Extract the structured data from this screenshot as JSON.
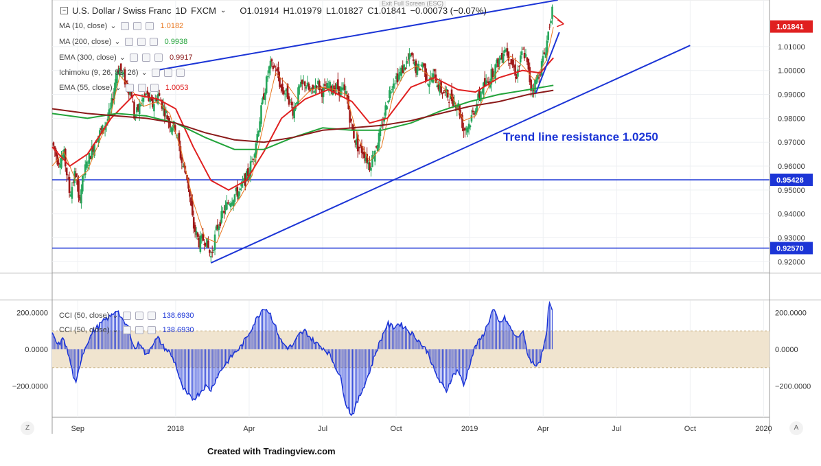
{
  "window": {
    "exit_fullscreen": "Exit Full Screen (ESC)"
  },
  "header": {
    "symbol": "U.S. Dollar / Swiss Franc",
    "interval": "1D",
    "source": "FXCM",
    "open": "O1.01914",
    "high": "H1.01979",
    "low": "L1.01827",
    "close": "C1.01841",
    "change": "−0.00073 (−0.07%)"
  },
  "indicators": [
    {
      "label": "MA (10, close)",
      "value": "1.0182",
      "color": "#e8761e"
    },
    {
      "label": "MA (200, close)",
      "value": "0.9938",
      "color": "#22a33a"
    },
    {
      "label": "EMA (300, close)",
      "value": "0.9917",
      "color": "#8b1a1a"
    },
    {
      "label": "Ichimoku (9, 26, 52, 26)",
      "value": "",
      "color": "#888888"
    },
    {
      "label": "EMA (55, close)",
      "value": "1.0053",
      "color": "#e02020"
    }
  ],
  "cci": [
    {
      "label": "CCI (50, close)",
      "value": "138.6930",
      "color": "#1c35d6"
    },
    {
      "label": "CCI (50, close)",
      "value": "138.6930",
      "color": "#1c35d6"
    }
  ],
  "annotation": "Trend line resistance 1.0250",
  "credit": "Created with Tradingview.com",
  "corner_left": "Z",
  "corner_right": "A",
  "colors": {
    "candle_up": "#26a65b",
    "candle_down": "#a01818",
    "trendline": "#1c35d6",
    "cci_band": "#f0e4cf"
  },
  "chart_data": {
    "type": "candlestick",
    "price_axis": {
      "ticks": [
        "1.01000",
        "1.00000",
        "0.99000",
        "0.98000",
        "0.97000",
        "0.96000",
        "0.95000",
        "0.94000",
        "0.93000",
        "0.92000"
      ],
      "tick_values": [
        1.01,
        1.0,
        0.99,
        0.98,
        0.97,
        0.96,
        0.95,
        0.94,
        0.93,
        0.92
      ],
      "ylim": [
        0.9155,
        1.0295
      ],
      "last_price_label": "1.01841",
      "horizontal_levels": [
        {
          "label": "0.95428",
          "value": 0.95428
        },
        {
          "label": "0.92570",
          "value": 0.9257
        }
      ]
    },
    "time_axis": {
      "labels": [
        "Sep",
        "2018",
        "Apr",
        "Jul",
        "Oct",
        "2019",
        "Apr",
        "Jul",
        "Oct",
        "2020"
      ],
      "positions": [
        2017.667,
        2018.0,
        2018.25,
        2018.5,
        2018.75,
        2019.0,
        2019.25,
        2019.5,
        2019.75,
        2020.0
      ],
      "xlim": [
        2017.58,
        2020.02
      ],
      "last_date": 2019.285
    },
    "ohlc_path": [
      [
        2017.58,
        0.97
      ],
      [
        2017.6,
        0.962
      ],
      [
        2017.62,
        0.965
      ],
      [
        2017.64,
        0.948
      ],
      [
        2017.66,
        0.958
      ],
      [
        2017.67,
        0.945
      ],
      [
        2017.69,
        0.958
      ],
      [
        2017.71,
        0.965
      ],
      [
        2017.73,
        0.972
      ],
      [
        2017.75,
        0.975
      ],
      [
        2017.77,
        0.98
      ],
      [
        2017.78,
        0.984
      ],
      [
        2017.79,
        0.992
      ],
      [
        2017.8,
        1.0
      ],
      [
        2017.81,
        1.001
      ],
      [
        2017.83,
        0.995
      ],
      [
        2017.85,
        0.99
      ],
      [
        2017.86,
        0.98
      ],
      [
        2017.88,
        0.986
      ],
      [
        2017.9,
        0.99
      ],
      [
        2017.92,
        0.985
      ],
      [
        2017.94,
        0.99
      ],
      [
        2017.96,
        0.984
      ],
      [
        2017.98,
        0.978
      ],
      [
        2018.0,
        0.976
      ],
      [
        2018.02,
        0.962
      ],
      [
        2018.04,
        0.955
      ],
      [
        2018.06,
        0.935
      ],
      [
        2018.08,
        0.928
      ],
      [
        2018.1,
        0.93
      ],
      [
        2018.12,
        0.922
      ],
      [
        2018.14,
        0.934
      ],
      [
        2018.16,
        0.94
      ],
      [
        2018.18,
        0.945
      ],
      [
        2018.2,
        0.948
      ],
      [
        2018.22,
        0.95
      ],
      [
        2018.24,
        0.955
      ],
      [
        2018.26,
        0.962
      ],
      [
        2018.28,
        0.975
      ],
      [
        2018.3,
        0.99
      ],
      [
        2018.32,
        1.002
      ],
      [
        2018.34,
        1.001
      ],
      [
        2018.36,
        0.992
      ],
      [
        2018.38,
        0.99
      ],
      [
        2018.4,
        0.983
      ],
      [
        2018.42,
        0.992
      ],
      [
        2018.44,
        0.995
      ],
      [
        2018.46,
        0.99
      ],
      [
        2018.48,
        0.995
      ],
      [
        2018.5,
        0.991
      ],
      [
        2018.52,
        0.993
      ],
      [
        2018.54,
        0.993
      ],
      [
        2018.56,
        0.992
      ],
      [
        2018.58,
        0.99
      ],
      [
        2018.6,
        0.975
      ],
      [
        2018.62,
        0.968
      ],
      [
        2018.64,
        0.966
      ],
      [
        2018.66,
        0.96
      ],
      [
        2018.68,
        0.968
      ],
      [
        2018.7,
        0.975
      ],
      [
        2018.72,
        0.988
      ],
      [
        2018.74,
        0.996
      ],
      [
        2018.76,
        0.998
      ],
      [
        2018.78,
        1.002
      ],
      [
        2018.8,
        1.006
      ],
      [
        2018.82,
        1.0
      ],
      [
        2018.84,
        1.003
      ],
      [
        2018.86,
        0.995
      ],
      [
        2018.88,
        0.998
      ],
      [
        2018.9,
        0.992
      ],
      [
        2018.92,
        0.99
      ],
      [
        2018.94,
        0.988
      ],
      [
        2018.96,
        0.986
      ],
      [
        2018.98,
        0.975
      ],
      [
        2019.0,
        0.978
      ],
      [
        2019.02,
        0.985
      ],
      [
        2019.04,
        0.992
      ],
      [
        2019.06,
        0.995
      ],
      [
        2019.08,
        1.0
      ],
      [
        2019.1,
        1.004
      ],
      [
        2019.12,
        1.01
      ],
      [
        2019.14,
        1.004
      ],
      [
        2019.16,
        0.998
      ],
      [
        2019.18,
        1.008
      ],
      [
        2019.19,
        1.006
      ],
      [
        2019.21,
        0.992
      ],
      [
        2019.22,
        0.994
      ],
      [
        2019.24,
        1.0
      ],
      [
        2019.26,
        1.01
      ],
      [
        2019.28,
        1.026
      ],
      [
        2019.285,
        1.0184
      ]
    ],
    "series": [
      {
        "name": "MA (10, close)",
        "color": "#e8761e",
        "points": [
          [
            2017.58,
            0.96
          ],
          [
            2017.62,
            0.966
          ],
          [
            2017.66,
            0.954
          ],
          [
            2017.7,
            0.958
          ],
          [
            2017.74,
            0.97
          ],
          [
            2017.78,
            0.982
          ],
          [
            2017.81,
            0.998
          ],
          [
            2017.85,
            0.992
          ],
          [
            2017.89,
            0.985
          ],
          [
            2017.94,
            0.987
          ],
          [
            2017.98,
            0.982
          ],
          [
            2018.02,
            0.966
          ],
          [
            2018.06,
            0.945
          ],
          [
            2018.1,
            0.93
          ],
          [
            2018.14,
            0.928
          ],
          [
            2018.18,
            0.94
          ],
          [
            2018.22,
            0.947
          ],
          [
            2018.26,
            0.956
          ],
          [
            2018.3,
            0.978
          ],
          [
            2018.34,
            0.999
          ],
          [
            2018.38,
            0.994
          ],
          [
            2018.42,
            0.987
          ],
          [
            2018.46,
            0.992
          ],
          [
            2018.5,
            0.993
          ],
          [
            2018.54,
            0.992
          ],
          [
            2018.58,
            0.99
          ],
          [
            2018.62,
            0.972
          ],
          [
            2018.66,
            0.962
          ],
          [
            2018.7,
            0.968
          ],
          [
            2018.74,
            0.99
          ],
          [
            2018.78,
            0.999
          ],
          [
            2018.82,
            1.002
          ],
          [
            2018.86,
            0.998
          ],
          [
            2018.9,
            0.994
          ],
          [
            2018.94,
            0.989
          ],
          [
            2018.98,
            0.979
          ],
          [
            2019.02,
            0.981
          ],
          [
            2019.06,
            0.992
          ],
          [
            2019.1,
            1.001
          ],
          [
            2019.14,
            1.006
          ],
          [
            2019.18,
            1.002
          ],
          [
            2019.22,
            0.996
          ],
          [
            2019.26,
            1.004
          ],
          [
            2019.285,
            1.0182
          ]
        ]
      },
      {
        "name": "EMA (55, close)",
        "color": "#e02020",
        "points": [
          [
            2017.58,
            0.968
          ],
          [
            2017.64,
            0.96
          ],
          [
            2017.7,
            0.965
          ],
          [
            2017.78,
            0.98
          ],
          [
            2017.86,
            0.99
          ],
          [
            2017.94,
            0.988
          ],
          [
            2018.0,
            0.984
          ],
          [
            2018.06,
            0.968
          ],
          [
            2018.12,
            0.954
          ],
          [
            2018.18,
            0.95
          ],
          [
            2018.24,
            0.954
          ],
          [
            2018.3,
            0.966
          ],
          [
            2018.36,
            0.98
          ],
          [
            2018.44,
            0.988
          ],
          [
            2018.52,
            0.992
          ],
          [
            2018.6,
            0.987
          ],
          [
            2018.66,
            0.978
          ],
          [
            2018.72,
            0.98
          ],
          [
            2018.8,
            0.993
          ],
          [
            2018.88,
            0.997
          ],
          [
            2018.96,
            0.992
          ],
          [
            2019.02,
            0.991
          ],
          [
            2019.1,
            0.997
          ],
          [
            2019.18,
            1.0
          ],
          [
            2019.24,
            0.999
          ],
          [
            2019.285,
            1.0053
          ]
        ]
      },
      {
        "name": "MA (200, close)",
        "color": "#22a33a",
        "points": [
          [
            2017.58,
            0.982
          ],
          [
            2017.7,
            0.98
          ],
          [
            2017.8,
            0.982
          ],
          [
            2017.9,
            0.981
          ],
          [
            2018.0,
            0.978
          ],
          [
            2018.1,
            0.972
          ],
          [
            2018.2,
            0.967
          ],
          [
            2018.3,
            0.967
          ],
          [
            2018.4,
            0.972
          ],
          [
            2018.5,
            0.976
          ],
          [
            2018.6,
            0.975
          ],
          [
            2018.7,
            0.975
          ],
          [
            2018.8,
            0.978
          ],
          [
            2018.9,
            0.983
          ],
          [
            2019.0,
            0.987
          ],
          [
            2019.1,
            0.99
          ],
          [
            2019.2,
            0.992
          ],
          [
            2019.285,
            0.9938
          ]
        ]
      },
      {
        "name": "EMA (300, close)",
        "color": "#8b1a1a",
        "points": [
          [
            2017.58,
            0.984
          ],
          [
            2017.7,
            0.982
          ],
          [
            2017.8,
            0.981
          ],
          [
            2017.9,
            0.98
          ],
          [
            2018.0,
            0.978
          ],
          [
            2018.1,
            0.974
          ],
          [
            2018.2,
            0.971
          ],
          [
            2018.3,
            0.97
          ],
          [
            2018.4,
            0.972
          ],
          [
            2018.5,
            0.975
          ],
          [
            2018.6,
            0.976
          ],
          [
            2018.7,
            0.977
          ],
          [
            2018.8,
            0.979
          ],
          [
            2018.9,
            0.982
          ],
          [
            2019.0,
            0.985
          ],
          [
            2019.1,
            0.987
          ],
          [
            2019.2,
            0.99
          ],
          [
            2019.285,
            0.9917
          ]
        ]
      }
    ],
    "trendlines": [
      {
        "name": "upper-trendline",
        "points": [
          [
            2017.93,
            1.0
          ],
          [
            2019.3,
            1.0295
          ]
        ]
      },
      {
        "name": "lower-trendline",
        "points": [
          [
            2018.12,
            0.9195
          ],
          [
            2019.75,
            1.0105
          ]
        ]
      },
      {
        "name": "short-trendline",
        "points": [
          [
            2019.225,
            0.9905
          ],
          [
            2019.305,
            1.016
          ]
        ]
      }
    ],
    "arrow": {
      "from": [
        2019.285,
        1.023
      ],
      "to": [
        2019.32,
        1.0195
      ]
    },
    "cci_panel": {
      "ticks": [
        "200.0000",
        "0.0000",
        "−200.0000"
      ],
      "tick_values": [
        200,
        0,
        -200
      ],
      "ylim": [
        -370,
        265
      ],
      "band": [
        -100,
        100
      ],
      "points": [
        [
          2017.58,
          80
        ],
        [
          2017.6,
          20
        ],
        [
          2017.62,
          60
        ],
        [
          2017.64,
          -60
        ],
        [
          2017.66,
          -200
        ],
        [
          2017.68,
          -40
        ],
        [
          2017.7,
          40
        ],
        [
          2017.72,
          100
        ],
        [
          2017.74,
          130
        ],
        [
          2017.76,
          160
        ],
        [
          2017.78,
          180
        ],
        [
          2017.8,
          220
        ],
        [
          2017.82,
          150
        ],
        [
          2017.84,
          120
        ],
        [
          2017.86,
          0
        ],
        [
          2017.88,
          40
        ],
        [
          2017.9,
          -40
        ],
        [
          2017.92,
          30
        ],
        [
          2017.94,
          60
        ],
        [
          2017.96,
          10
        ],
        [
          2017.98,
          -20
        ],
        [
          2018.0,
          -80
        ],
        [
          2018.02,
          -200
        ],
        [
          2018.04,
          -250
        ],
        [
          2018.06,
          -270
        ],
        [
          2018.08,
          -240
        ],
        [
          2018.1,
          -200
        ],
        [
          2018.12,
          -220
        ],
        [
          2018.14,
          -150
        ],
        [
          2018.16,
          -100
        ],
        [
          2018.18,
          -60
        ],
        [
          2018.2,
          -20
        ],
        [
          2018.22,
          10
        ],
        [
          2018.24,
          60
        ],
        [
          2018.26,
          120
        ],
        [
          2018.28,
          180
        ],
        [
          2018.3,
          230
        ],
        [
          2018.32,
          200
        ],
        [
          2018.34,
          120
        ],
        [
          2018.36,
          40
        ],
        [
          2018.38,
          10
        ],
        [
          2018.4,
          20
        ],
        [
          2018.42,
          80
        ],
        [
          2018.44,
          100
        ],
        [
          2018.46,
          60
        ],
        [
          2018.48,
          30
        ],
        [
          2018.5,
          10
        ],
        [
          2018.52,
          -20
        ],
        [
          2018.54,
          -80
        ],
        [
          2018.56,
          -150
        ],
        [
          2018.58,
          -300
        ],
        [
          2018.6,
          -360
        ],
        [
          2018.62,
          -280
        ],
        [
          2018.64,
          -200
        ],
        [
          2018.66,
          -120
        ],
        [
          2018.68,
          -20
        ],
        [
          2018.7,
          60
        ],
        [
          2018.72,
          140
        ],
        [
          2018.74,
          120
        ],
        [
          2018.76,
          140
        ],
        [
          2018.78,
          120
        ],
        [
          2018.8,
          90
        ],
        [
          2018.82,
          60
        ],
        [
          2018.84,
          20
        ],
        [
          2018.86,
          -20
        ],
        [
          2018.88,
          -120
        ],
        [
          2018.9,
          -180
        ],
        [
          2018.92,
          -230
        ],
        [
          2018.94,
          -150
        ],
        [
          2018.96,
          -110
        ],
        [
          2018.98,
          -200
        ],
        [
          2019.0,
          -80
        ],
        [
          2019.02,
          20
        ],
        [
          2019.04,
          60
        ],
        [
          2019.06,
          130
        ],
        [
          2019.08,
          220
        ],
        [
          2019.1,
          140
        ],
        [
          2019.12,
          170
        ],
        [
          2019.14,
          110
        ],
        [
          2019.16,
          60
        ],
        [
          2019.18,
          100
        ],
        [
          2019.2,
          -40
        ],
        [
          2019.22,
          -90
        ],
        [
          2019.24,
          -60
        ],
        [
          2019.26,
          60
        ],
        [
          2019.27,
          250
        ],
        [
          2019.28,
          220
        ],
        [
          2019.285,
          139
        ]
      ]
    }
  }
}
